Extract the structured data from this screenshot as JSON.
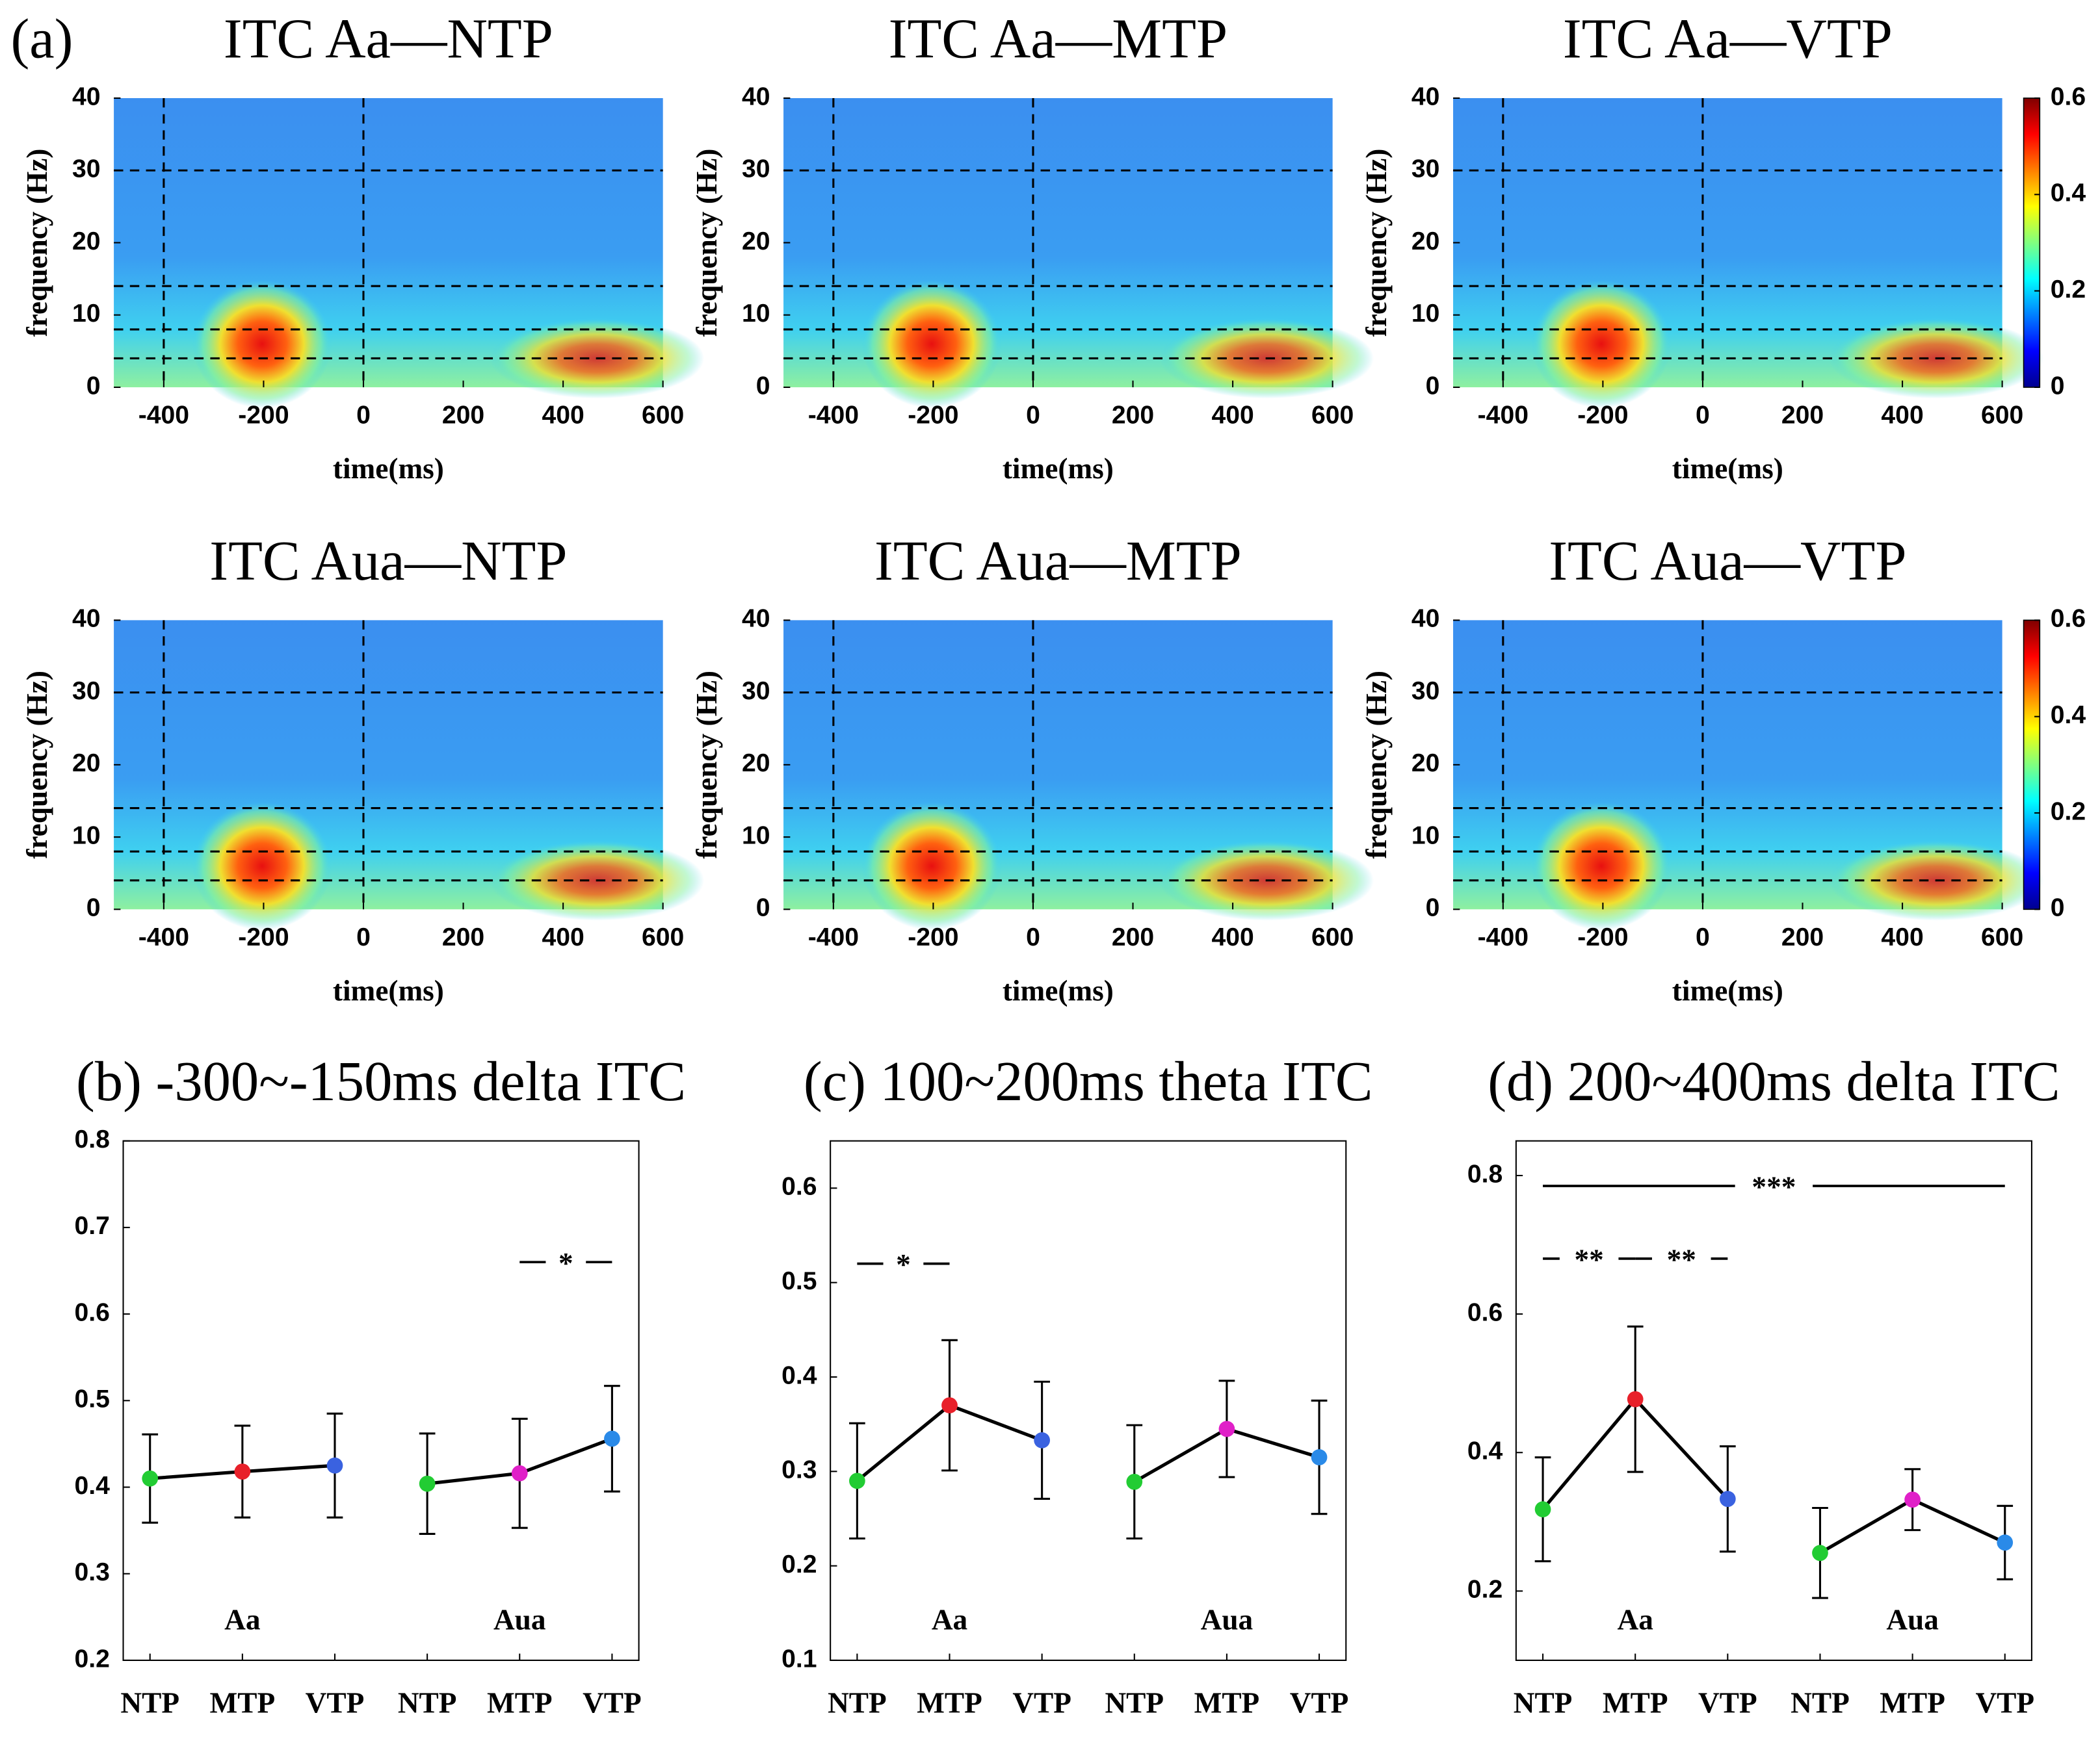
{
  "chart_data": [
    {
      "type": "heatmap",
      "panel_label": "(a)",
      "title": "ITC Aa—NTP",
      "xlabel": "time(ms)",
      "ylabel": "frequency (Hz)",
      "xlim": [
        -500,
        600
      ],
      "ylim": [
        0,
        40
      ],
      "xticks": [
        -400,
        -200,
        0,
        200,
        400,
        600
      ],
      "yticks": [
        0,
        10,
        20,
        30,
        40
      ],
      "vlines": [
        -400,
        0
      ],
      "hlines": [
        4,
        8,
        14,
        30
      ]
    },
    {
      "type": "heatmap",
      "title": "ITC Aa—MTP",
      "xlabel": "time(ms)",
      "ylabel": "frequency (Hz)",
      "xlim": [
        -500,
        600
      ],
      "ylim": [
        0,
        40
      ],
      "xticks": [
        -400,
        -200,
        0,
        200,
        400,
        600
      ],
      "yticks": [
        0,
        10,
        20,
        30,
        40
      ],
      "vlines": [
        -400,
        0
      ],
      "hlines": [
        4,
        8,
        14,
        30
      ]
    },
    {
      "type": "heatmap",
      "title": "ITC Aa—VTP",
      "xlabel": "time(ms)",
      "ylabel": "frequency (Hz)",
      "xlim": [
        -500,
        600
      ],
      "ylim": [
        0,
        40
      ],
      "xticks": [
        -400,
        -200,
        0,
        200,
        400,
        600
      ],
      "yticks": [
        0,
        10,
        20,
        30,
        40
      ],
      "vlines": [
        -400,
        0
      ],
      "hlines": [
        4,
        8,
        14,
        30
      ],
      "colorbar": true,
      "clim": [
        0,
        0.6
      ],
      "cticks": [
        0,
        0.2,
        0.4,
        0.6
      ]
    },
    {
      "type": "heatmap",
      "title": "ITC Aua—NTP",
      "xlabel": "time(ms)",
      "ylabel": "frequency (Hz)",
      "xlim": [
        -500,
        600
      ],
      "ylim": [
        0,
        40
      ],
      "xticks": [
        -400,
        -200,
        0,
        200,
        400,
        600
      ],
      "yticks": [
        0,
        10,
        20,
        30,
        40
      ],
      "vlines": [
        -400,
        0
      ],
      "hlines": [
        4,
        8,
        14,
        30
      ]
    },
    {
      "type": "heatmap",
      "title": "ITC Aua—MTP",
      "xlabel": "time(ms)",
      "ylabel": "frequency (Hz)",
      "xlim": [
        -500,
        600
      ],
      "ylim": [
        0,
        40
      ],
      "xticks": [
        -400,
        -200,
        0,
        200,
        400,
        600
      ],
      "yticks": [
        0,
        10,
        20,
        30,
        40
      ],
      "vlines": [
        -400,
        0
      ],
      "hlines": [
        4,
        8,
        14,
        30
      ]
    },
    {
      "type": "heatmap",
      "title": "ITC Aua—VTP",
      "xlabel": "time(ms)",
      "ylabel": "frequency (Hz)",
      "xlim": [
        -500,
        600
      ],
      "ylim": [
        0,
        40
      ],
      "xticks": [
        -400,
        -200,
        0,
        200,
        400,
        600
      ],
      "yticks": [
        0,
        10,
        20,
        30,
        40
      ],
      "vlines": [
        -400,
        0
      ],
      "hlines": [
        4,
        8,
        14,
        30
      ],
      "colorbar": true,
      "clim": [
        0,
        0.6
      ],
      "cticks": [
        0,
        0.2,
        0.4,
        0.6
      ]
    },
    {
      "type": "line",
      "title": "(b) -300~-150ms delta ITC",
      "categories": [
        "NTP",
        "MTP",
        "VTP",
        "NTP",
        "MTP",
        "VTP"
      ],
      "point_colors": [
        "#22cc33",
        "#e8202a",
        "#3a62e0",
        "#22cc33",
        "#e020c8",
        "#2a8ae8"
      ],
      "ylim": [
        0.2,
        0.8
      ],
      "yticks": [
        0.2,
        0.3,
        0.4,
        0.5,
        0.6,
        0.7,
        0.8
      ],
      "series": [
        {
          "name": "Aa",
          "values": [
            0.41,
            0.418,
            0.425,
            null,
            null,
            null
          ],
          "errors": [
            0.051,
            0.053,
            0.06,
            null,
            null,
            null
          ]
        },
        {
          "name": "Aua",
          "values": [
            null,
            null,
            null,
            0.404,
            0.416,
            0.456
          ],
          "errors": [
            null,
            null,
            null,
            0.058,
            0.063,
            0.061
          ]
        }
      ],
      "annotations": [
        {
          "text": "*",
          "from": 4,
          "to": 5,
          "y": 0.66
        }
      ]
    },
    {
      "type": "line",
      "title": "(c) 100~200ms theta ITC",
      "categories": [
        "NTP",
        "MTP",
        "VTP",
        "NTP",
        "MTP",
        "VTP"
      ],
      "point_colors": [
        "#22cc33",
        "#e8202a",
        "#3a62e0",
        "#22cc33",
        "#e020c8",
        "#2a8ae8"
      ],
      "ylim": [
        0.1,
        0.65
      ],
      "yticks": [
        0.1,
        0.2,
        0.3,
        0.4,
        0.5,
        0.6
      ],
      "series": [
        {
          "name": "Aa",
          "values": [
            0.29,
            0.37,
            0.333,
            null,
            null,
            null
          ],
          "errors": [
            0.061,
            0.069,
            0.062,
            null,
            null,
            null
          ]
        },
        {
          "name": "Aua",
          "values": [
            null,
            null,
            null,
            0.289,
            0.345,
            0.315
          ],
          "errors": [
            null,
            null,
            null,
            0.06,
            0.051,
            0.06
          ]
        }
      ],
      "annotations": [
        {
          "text": "*",
          "from": 0,
          "to": 1,
          "y": 0.52
        }
      ]
    },
    {
      "type": "line",
      "title": "(d) 200~400ms delta ITC",
      "categories": [
        "NTP",
        "MTP",
        "VTP",
        "NTP",
        "MTP",
        "VTP"
      ],
      "point_colors": [
        "#22cc33",
        "#e8202a",
        "#3a62e0",
        "#22cc33",
        "#e020c8",
        "#2a8ae8"
      ],
      "ylim": [
        0.1,
        0.85
      ],
      "yticks": [
        0.2,
        0.4,
        0.6,
        0.8
      ],
      "series": [
        {
          "name": "Aa",
          "values": [
            0.318,
            0.477,
            0.333,
            null,
            null,
            null
          ],
          "errors": [
            0.075,
            0.105,
            0.076,
            null,
            null,
            null
          ]
        },
        {
          "name": "Aua",
          "values": [
            null,
            null,
            null,
            0.255,
            0.332,
            0.27
          ],
          "errors": [
            null,
            null,
            null,
            0.065,
            0.044,
            0.053
          ]
        }
      ],
      "annotations": [
        {
          "text": "***",
          "from": 0,
          "to": 5,
          "y": 0.785
        },
        {
          "text": "**",
          "from": 0,
          "to": 1,
          "y": 0.68
        },
        {
          "text": "**",
          "from": 1,
          "to": 2,
          "y": 0.68
        }
      ]
    }
  ]
}
